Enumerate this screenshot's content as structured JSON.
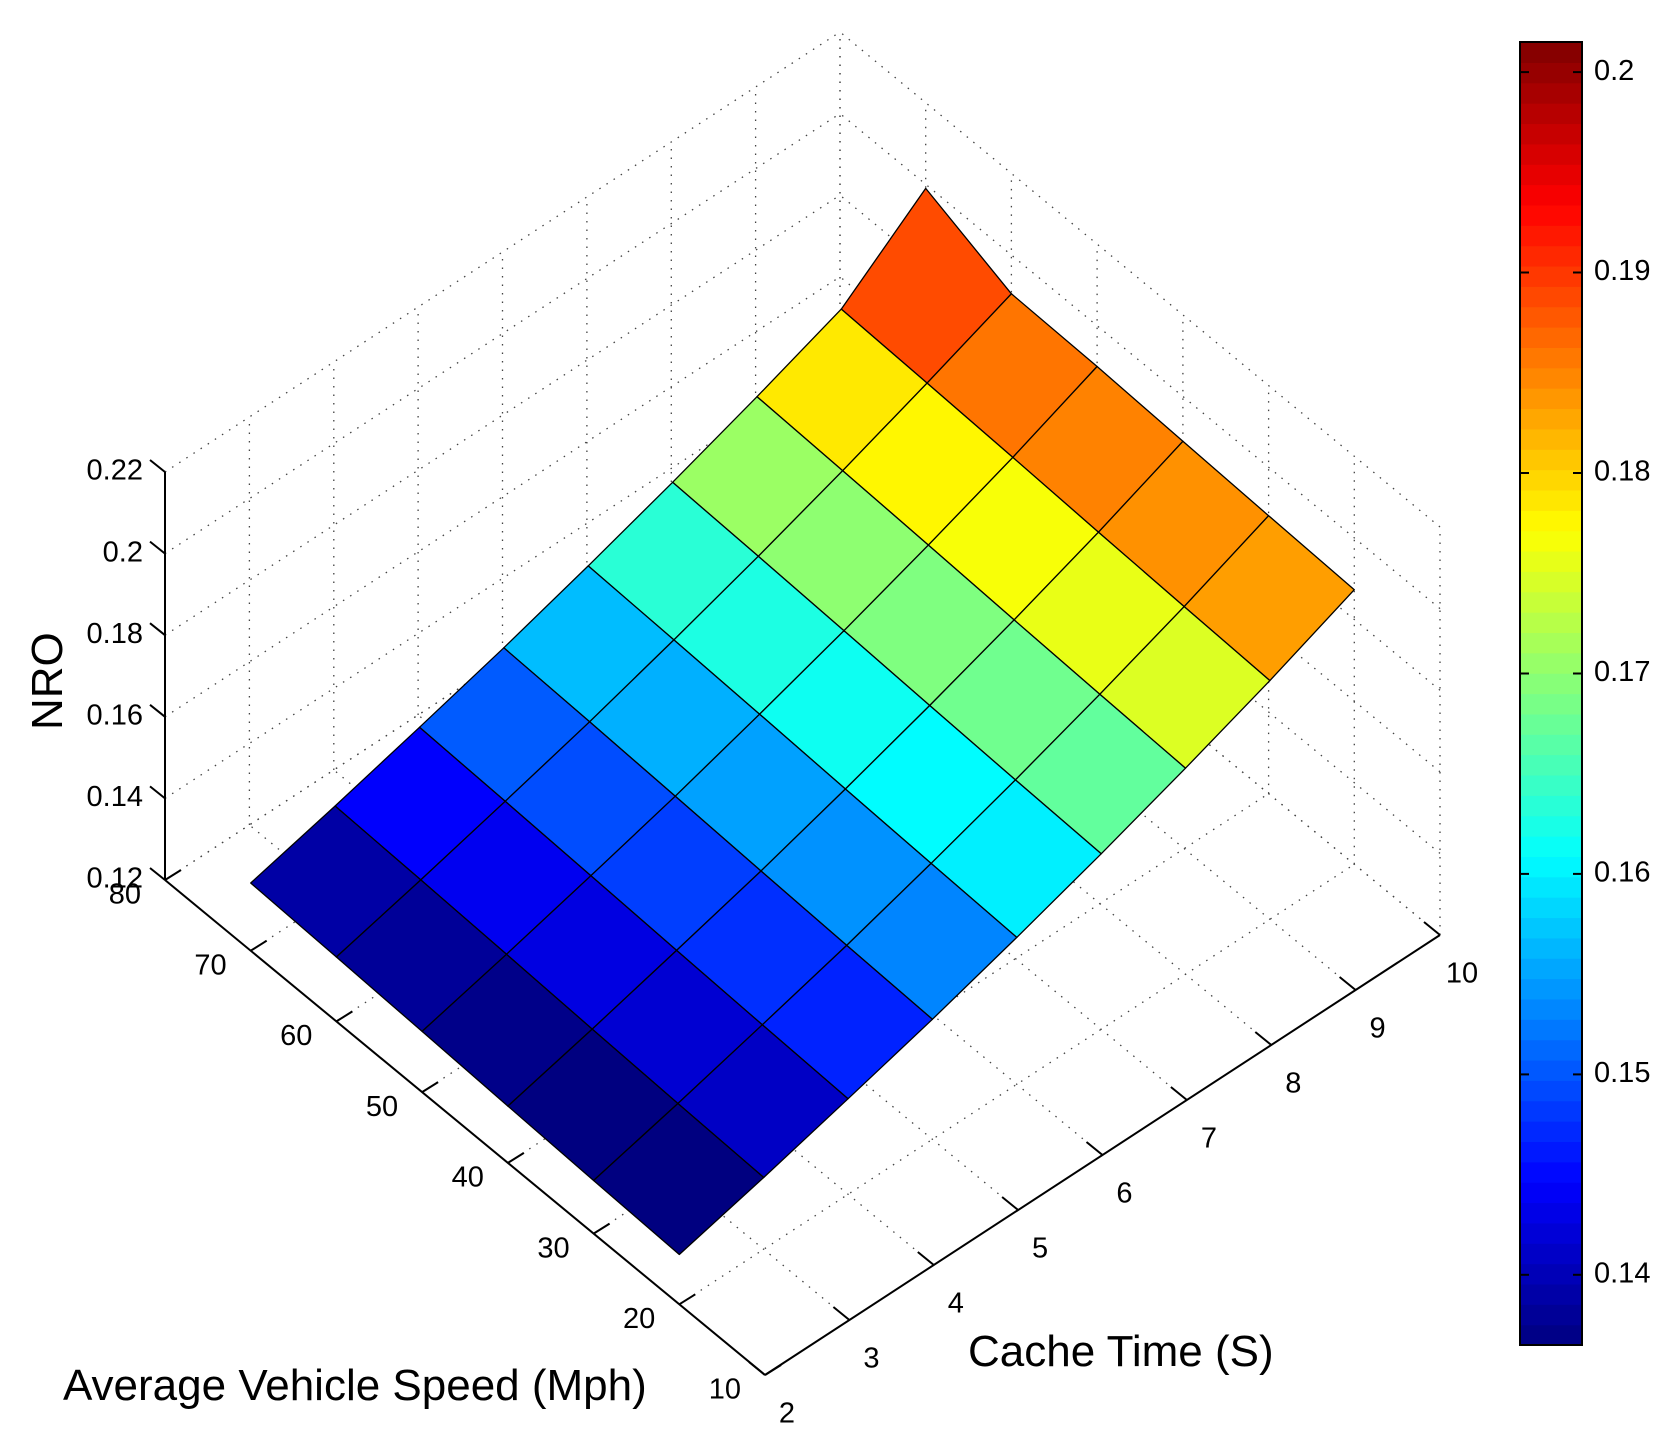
{
  "chart_data": {
    "type": "surface3d",
    "title": "",
    "xlabel": "Average Vehicle Speed (Mph)",
    "ylabel": "Cache Time (S)",
    "zlabel": "NRO",
    "x_ticks": [
      10,
      20,
      30,
      40,
      50,
      60,
      70,
      80
    ],
    "y_ticks": [
      2,
      3,
      4,
      5,
      6,
      7,
      8,
      9,
      10
    ],
    "z_ticks": [
      0.12,
      0.14,
      0.16,
      0.18,
      0.2,
      0.22
    ],
    "x_tick_labels": [
      "10",
      "20",
      "30",
      "40",
      "50",
      "60",
      "70",
      "80"
    ],
    "y_tick_labels": [
      "2",
      "3",
      "4",
      "5",
      "6",
      "7",
      "8",
      "9",
      "10"
    ],
    "z_tick_labels": [
      "0.12",
      "0.14",
      "0.16",
      "0.18",
      "0.2",
      "0.22"
    ],
    "xlim": [
      10,
      80
    ],
    "ylim": [
      2,
      10
    ],
    "zlim": [
      0.12,
      0.22
    ],
    "grid": true,
    "surface": {
      "speed": [
        20,
        30,
        40,
        50,
        60,
        70
      ],
      "cache_time": [
        2,
        3,
        4,
        5,
        6,
        7,
        8,
        9,
        10
      ],
      "z": [
        [
          0.1322,
          0.133,
          0.1339,
          0.1349,
          0.1358,
          0.1366
        ],
        [
          0.1376,
          0.1384,
          0.1393,
          0.1403,
          0.1412,
          0.142
        ],
        [
          0.1434,
          0.1442,
          0.1451,
          0.1461,
          0.147,
          0.1478
        ],
        [
          0.1494,
          0.1502,
          0.1511,
          0.1521,
          0.153,
          0.1538
        ],
        [
          0.156,
          0.1568,
          0.1577,
          0.1587,
          0.1596,
          0.1604
        ],
        [
          0.163,
          0.1638,
          0.1647,
          0.1657,
          0.1666,
          0.1674
        ],
        [
          0.1705,
          0.1713,
          0.1722,
          0.1732,
          0.1741,
          0.1749
        ],
        [
          0.1785,
          0.1793,
          0.1802,
          0.1812,
          0.1821,
          0.1829
        ],
        [
          0.1873,
          0.1881,
          0.189,
          0.19,
          0.1905,
          0.199
        ]
      ]
    },
    "colorbar": {
      "colormap": "jet",
      "min": 0.1365,
      "max": 0.2015,
      "ticks": [
        0.14,
        0.15,
        0.16,
        0.17,
        0.18,
        0.19,
        0.2
      ],
      "tick_labels": [
        "0.14",
        "0.15",
        "0.16",
        "0.17",
        "0.18",
        "0.19",
        "0.2"
      ],
      "levels": 64
    }
  }
}
